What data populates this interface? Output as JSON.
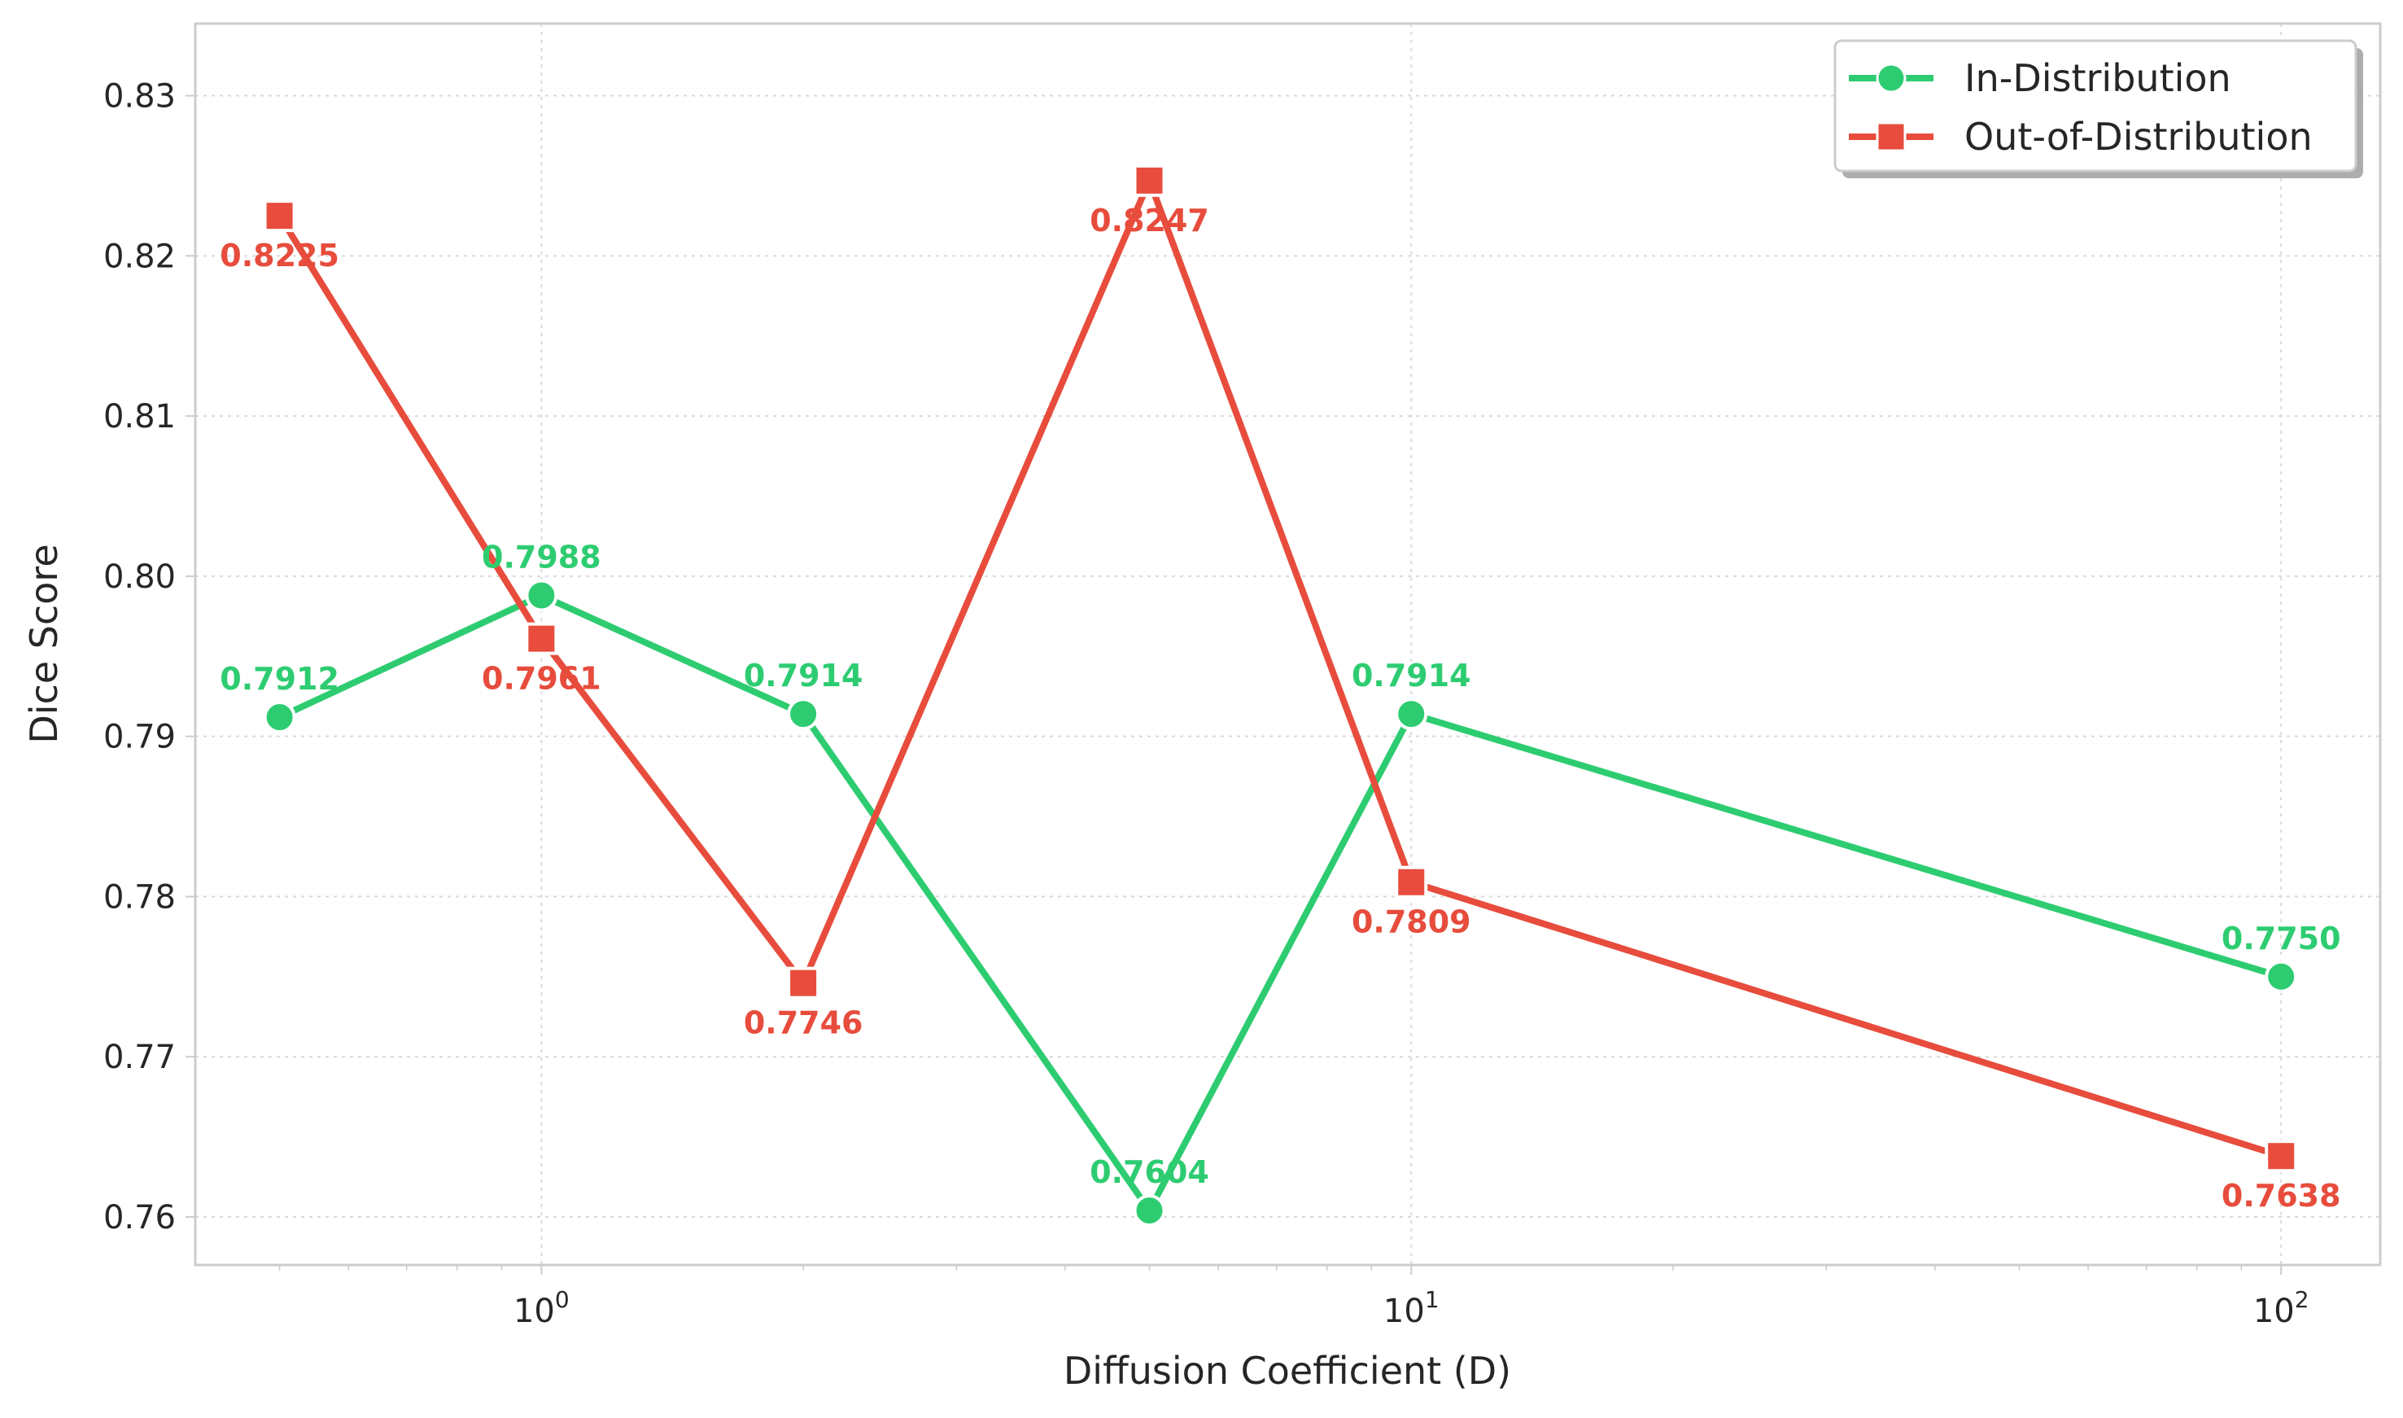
{
  "chart_data": {
    "type": "line",
    "title": "",
    "xlabel": "Diffusion Coefficient (D)",
    "ylabel": "Dice Score",
    "xscale": "log",
    "xlim": [
      0.4,
      130
    ],
    "ylim": [
      0.757,
      0.8345
    ],
    "x": [
      0.5,
      1,
      2,
      5,
      10,
      100
    ],
    "x_ticks": [
      {
        "value": 1,
        "base": "10",
        "exp": "0"
      },
      {
        "value": 10,
        "base": "10",
        "exp": "1"
      },
      {
        "value": 100,
        "base": "10",
        "exp": "2"
      }
    ],
    "y_ticks": [
      {
        "value": 0.76,
        "label": "0.76"
      },
      {
        "value": 0.77,
        "label": "0.77"
      },
      {
        "value": 0.78,
        "label": "0.78"
      },
      {
        "value": 0.79,
        "label": "0.79"
      },
      {
        "value": 0.8,
        "label": "0.80"
      },
      {
        "value": 0.81,
        "label": "0.81"
      },
      {
        "value": 0.82,
        "label": "0.82"
      },
      {
        "value": 0.83,
        "label": "0.83"
      }
    ],
    "grid": true,
    "legend_position": "top-right",
    "series": [
      {
        "name": "In-Distribution",
        "color": "#2ecc71",
        "marker": "circle",
        "label_position": "above",
        "values": [
          0.7912,
          0.7988,
          0.7914,
          0.7604,
          0.7914,
          0.775
        ],
        "labels": [
          "0.7912",
          "0.7988",
          "0.7914",
          "0.7604",
          "0.7914",
          "0.7750"
        ]
      },
      {
        "name": "Out-of-Distribution",
        "color": "#e74c3c",
        "marker": "square",
        "label_position": "below",
        "values": [
          0.8225,
          0.7961,
          0.7746,
          0.8247,
          0.7809,
          0.7638
        ],
        "labels": [
          "0.8225",
          "0.7961",
          "0.7746",
          "0.8247",
          "0.7809",
          "0.7638"
        ]
      }
    ]
  }
}
